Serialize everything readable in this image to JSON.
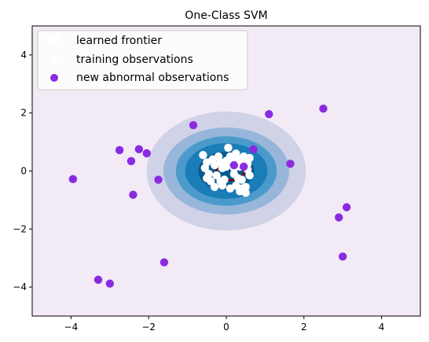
{
  "chart_data": {
    "type": "scatter",
    "title": "One-Class SVM",
    "xlim": [
      -5,
      5
    ],
    "ylim": [
      -5,
      5
    ],
    "xticks": [
      -4,
      -2,
      0,
      2,
      4
    ],
    "yticks": [
      -4,
      -2,
      0,
      2,
      4
    ],
    "xtick_labels": [
      "−4",
      "−2",
      "0",
      "2",
      "4"
    ],
    "ytick_labels": [
      "−4",
      "−2",
      "0",
      "2",
      "4"
    ],
    "grid": false,
    "legend_position": "upper-left",
    "colors": {
      "background": "#f2ebf5",
      "level_1": "#d0d2e8",
      "level_2": "#97b6da",
      "level_3": "#4a9bcb",
      "level_4": "#1a7db8",
      "level_5": "#045a8d",
      "frontier": "#8b0000",
      "training": "#ffffff",
      "abnormal": "#8a2be2"
    },
    "decision_levels": [
      {
        "name": "level-1",
        "rx": 2.05,
        "ry": 2.05
      },
      {
        "name": "level-2",
        "rx": 1.62,
        "ry": 1.5
      },
      {
        "name": "level-3",
        "rx": 1.3,
        "ry": 1.2
      },
      {
        "name": "level-4",
        "rx": 1.06,
        "ry": 0.96
      },
      {
        "name": "level-5",
        "rx": 0.72,
        "ry": 0.66
      }
    ],
    "frontier": {
      "cx": 0.1,
      "cy": 0.0,
      "rx": 0.36,
      "ry": 0.32
    },
    "series": [
      {
        "name": "training observations",
        "points": [
          [
            -0.6,
            0.55
          ],
          [
            -0.5,
            0.3
          ],
          [
            -0.55,
            0.1
          ],
          [
            -0.45,
            -0.1
          ],
          [
            -0.5,
            -0.25
          ],
          [
            -0.35,
            0.4
          ],
          [
            -0.3,
            0.2
          ],
          [
            -0.4,
            -0.35
          ],
          [
            -0.25,
            -0.15
          ],
          [
            -0.2,
            0.5
          ],
          [
            -0.15,
            0.3
          ],
          [
            -0.1,
            -0.5
          ],
          [
            -0.15,
            -0.35
          ],
          [
            0.0,
            0.15
          ],
          [
            0.05,
            0.8
          ],
          [
            0.1,
            0.5
          ],
          [
            0.15,
            0.35
          ],
          [
            0.2,
            -0.1
          ],
          [
            0.25,
            0.6
          ],
          [
            0.3,
            0.4
          ],
          [
            0.35,
            0.15
          ],
          [
            0.4,
            -0.3
          ],
          [
            0.45,
            0.5
          ],
          [
            0.5,
            -0.55
          ],
          [
            0.55,
            0.25
          ],
          [
            0.6,
            -0.15
          ],
          [
            0.25,
            -0.5
          ],
          [
            0.4,
            -0.6
          ],
          [
            0.1,
            -0.6
          ],
          [
            0.5,
            -0.75
          ],
          [
            0.35,
            -0.7
          ],
          [
            -0.05,
            -0.3
          ],
          [
            0.0,
            0.35
          ],
          [
            0.55,
            0.05
          ],
          [
            -0.3,
            -0.55
          ],
          [
            0.2,
            0.1
          ],
          [
            0.45,
            0.3
          ],
          [
            -0.1,
            0.1
          ],
          [
            0.3,
            -0.25
          ],
          [
            0.6,
            0.45
          ]
        ]
      },
      {
        "name": "new abnormal observations",
        "points": [
          [
            -3.95,
            -0.28
          ],
          [
            -3.3,
            -3.75
          ],
          [
            -3.0,
            -3.88
          ],
          [
            -2.75,
            0.72
          ],
          [
            -2.45,
            0.34
          ],
          [
            -2.25,
            0.75
          ],
          [
            -2.05,
            0.61
          ],
          [
            -2.4,
            -0.82
          ],
          [
            -1.75,
            -0.3
          ],
          [
            -1.6,
            -3.15
          ],
          [
            -0.85,
            1.58
          ],
          [
            0.2,
            0.2
          ],
          [
            0.45,
            0.15
          ],
          [
            0.7,
            0.75
          ],
          [
            1.1,
            1.96
          ],
          [
            1.65,
            0.25
          ],
          [
            2.5,
            2.15
          ],
          [
            2.9,
            -1.6
          ],
          [
            3.0,
            -2.95
          ],
          [
            3.1,
            -1.25
          ]
        ]
      }
    ],
    "legend": [
      {
        "label": "learned frontier"
      },
      {
        "label": "training observations"
      },
      {
        "label": "new abnormal observations"
      }
    ]
  }
}
